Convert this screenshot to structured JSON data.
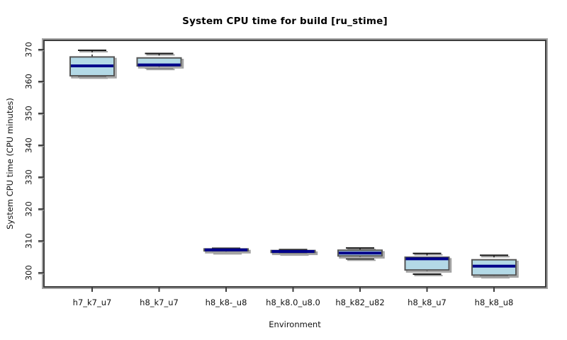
{
  "chart_data": {
    "type": "boxplot",
    "title": "System CPU time for build [ru_stime]",
    "xlabel": "Environment",
    "ylabel": "System CPU time (CPU minutes)",
    "ylim": [
      295.6,
      372.9
    ],
    "yticks": [
      300,
      310,
      320,
      330,
      340,
      350,
      360,
      370
    ],
    "grid": false,
    "legend": "none",
    "categories": [
      "h7_k7_u7",
      "h8_k7_u7",
      "h8_k8-_u8",
      "h8_k8.0_u8.0",
      "h8_k82_u82",
      "h8_k8_u7",
      "h8_k8_u8"
    ],
    "series": [
      {
        "name": "h7_k7_u7",
        "min": 361.5,
        "q1": 361.8,
        "median": 364.9,
        "q3": 367.7,
        "max": 369.8
      },
      {
        "name": "h8_k7_u7",
        "min": 364.2,
        "q1": 364.9,
        "median": 365.2,
        "q3": 367.4,
        "max": 368.8
      },
      {
        "name": "h8_k8-_u8",
        "min": 306.4,
        "q1": 306.9,
        "median": 307.2,
        "q3": 307.5,
        "max": 307.7
      },
      {
        "name": "h8_k8.0_u8.0",
        "min": 306.0,
        "q1": 306.4,
        "median": 306.7,
        "q3": 307.0,
        "max": 307.3
      },
      {
        "name": "h8_k82_u82",
        "min": 304.4,
        "q1": 305.3,
        "median": 306.2,
        "q3": 307.1,
        "max": 307.8
      },
      {
        "name": "h8_k8_u7",
        "min": 299.6,
        "q1": 300.9,
        "median": 304.4,
        "q3": 304.9,
        "max": 306.1
      },
      {
        "name": "h8_k8_u8",
        "min": 298.9,
        "q1": 299.3,
        "median": 302.1,
        "q3": 304.1,
        "max": 305.5
      }
    ],
    "colors": {
      "background": "#ffffff",
      "box_fill": "#b3d9e6",
      "median": "#00008b",
      "box_border": "#565656",
      "whisker": "#1a1a1a",
      "shadow": "#a3a3a3",
      "frame": "#3d3d3d",
      "text": "#111111"
    }
  }
}
